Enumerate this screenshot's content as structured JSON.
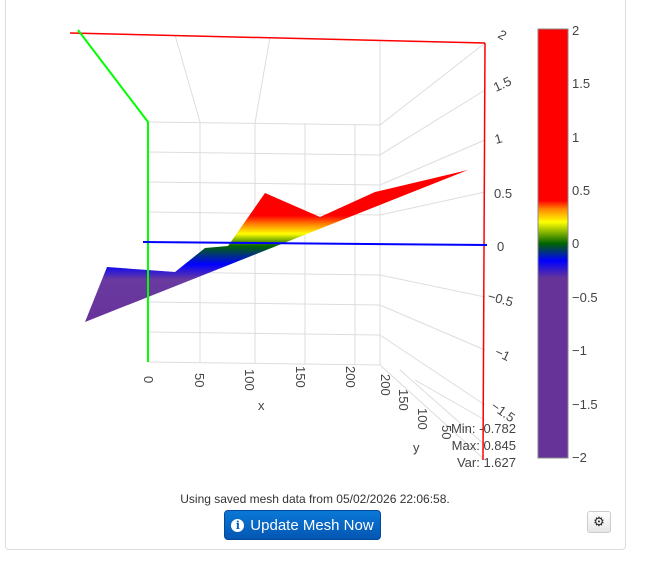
{
  "chart_data": {
    "type": "surface3d",
    "title": "",
    "xlabel": "x",
    "ylabel": "y",
    "x_ticks": [
      "0",
      "50",
      "100",
      "150",
      "200"
    ],
    "y_ticks": [
      "200",
      "150",
      "100",
      "50"
    ],
    "z_ticks": [
      "2",
      "1.5",
      "1",
      "0.5",
      "0",
      "−0.5",
      "−1",
      "−1.5",
      "−2"
    ],
    "zlim": [
      -2,
      2
    ],
    "colorbar": {
      "ticks": [
        "2",
        "1.5",
        "1",
        "0.5",
        "0",
        "−0.5",
        "−1",
        "−1.5",
        "−2"
      ],
      "range": [
        -2,
        2
      ],
      "colors": [
        "#663399",
        "#0000ff",
        "#008000",
        "#ffff00",
        "#ff0000"
      ]
    },
    "axis_colors": {
      "x": "#0000ff",
      "y": "#00ff00",
      "z": "#ff0000"
    }
  },
  "stats": {
    "min": "Min: -0.782",
    "max": "Max: 0.845",
    "var": "Var: 1.627"
  },
  "message": "Using saved mesh data from 05/02/2026 22:06:58.",
  "update_button": "Update Mesh Now",
  "settings_icon": "gear-icon"
}
